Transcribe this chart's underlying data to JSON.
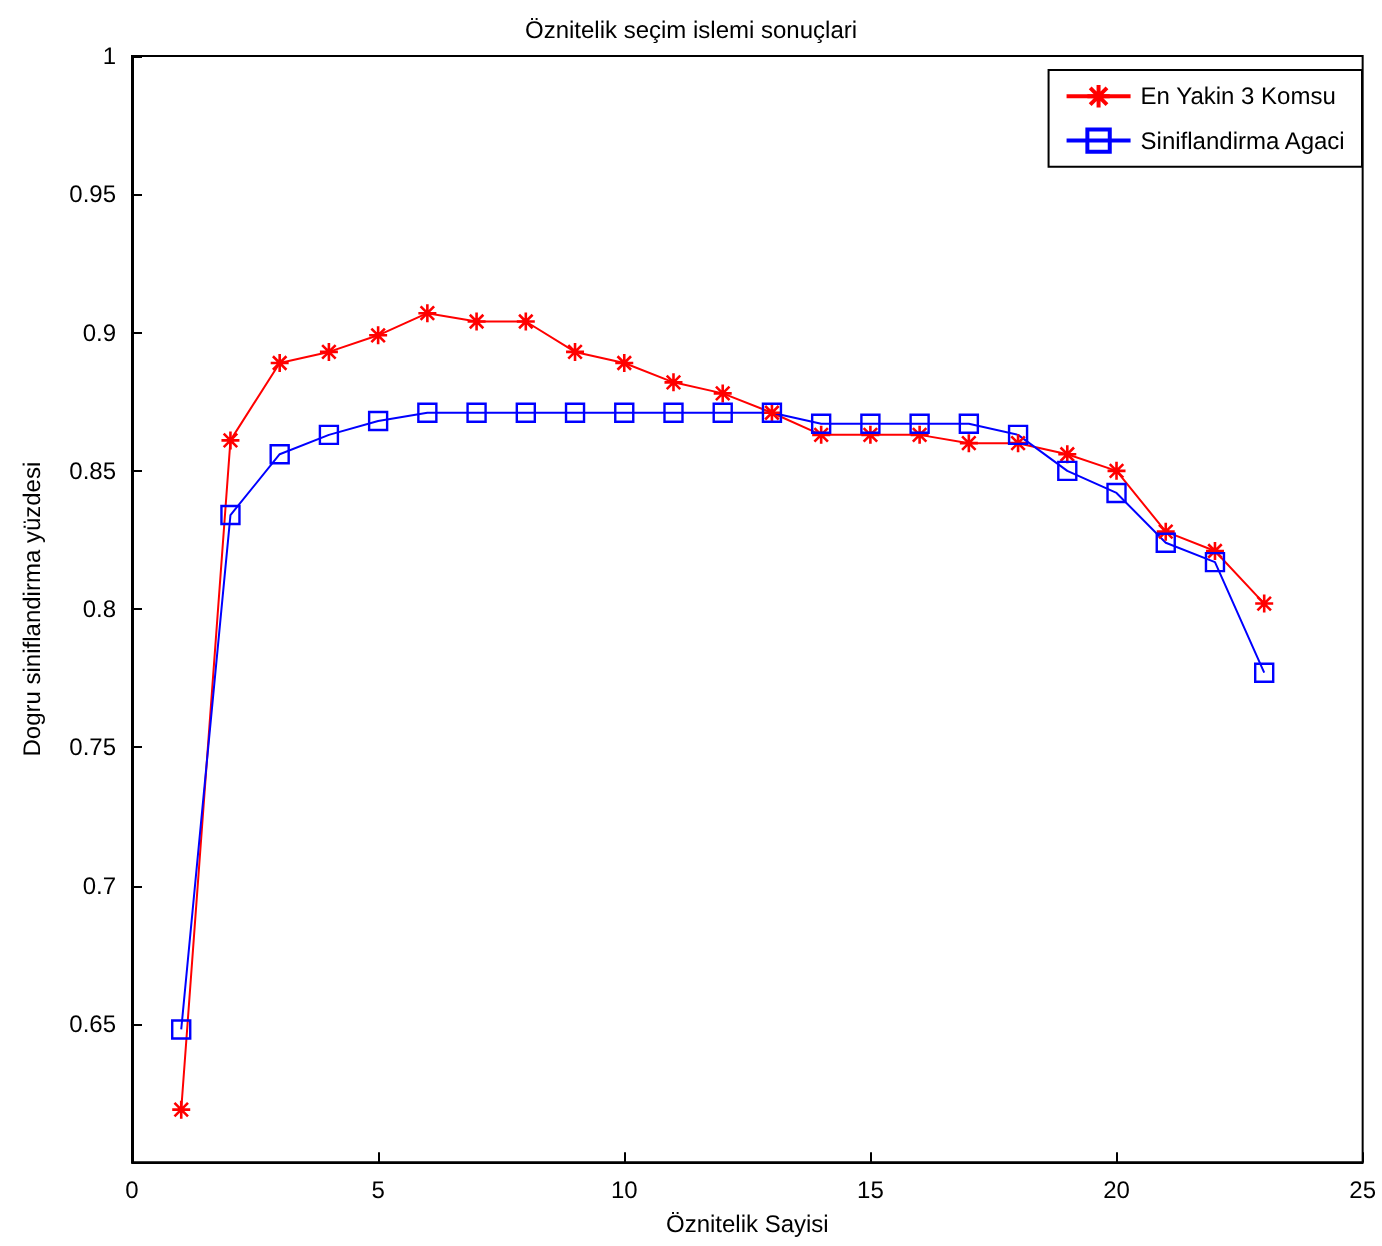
{
  "chart_data": {
    "type": "line",
    "title": "Öznitelik seçim islemi sonuçlari",
    "xlabel": "Öznitelik Sayisi",
    "ylabel": "Dogru siniflandirma yüzdesi",
    "x": [
      1,
      2,
      3,
      4,
      5,
      6,
      7,
      8,
      9,
      10,
      11,
      12,
      13,
      14,
      15,
      16,
      17,
      18,
      19,
      20,
      21,
      22,
      23
    ],
    "series": [
      {
        "name": "En Yakin 3 Komsu",
        "color": "#ff0000",
        "marker": "cross",
        "values": [
          0.619,
          0.861,
          0.889,
          0.893,
          0.899,
          0.907,
          0.904,
          0.904,
          0.893,
          0.889,
          0.882,
          0.878,
          0.871,
          0.863,
          0.863,
          0.863,
          0.86,
          0.86,
          0.856,
          0.85,
          0.828,
          0.821,
          0.802
        ]
      },
      {
        "name": "Siniflandirma Agaci",
        "color": "#0000ff",
        "marker": "square",
        "values": [
          0.648,
          0.834,
          0.856,
          0.863,
          0.868,
          0.871,
          0.871,
          0.871,
          0.871,
          0.871,
          0.871,
          0.871,
          0.871,
          0.867,
          0.867,
          0.867,
          0.867,
          0.863,
          0.85,
          0.842,
          0.824,
          0.817,
          0.777
        ]
      }
    ],
    "xlim": [
      0,
      25
    ],
    "xticks": [
      0,
      5,
      10,
      15,
      20,
      25
    ],
    "ylim": [
      0.6,
      1
    ],
    "yticks": [
      0.65,
      0.7,
      0.75,
      0.8,
      0.85,
      0.9,
      0.95,
      1
    ],
    "grid": false,
    "legend": "top right",
    "line_style": "solid"
  }
}
